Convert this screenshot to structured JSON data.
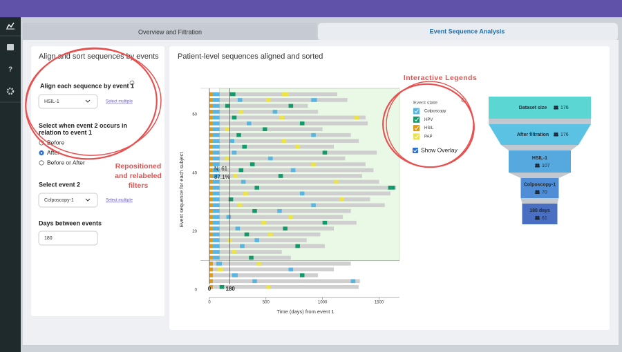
{
  "sidebar": {
    "help": "?"
  },
  "tabs": [
    "Overview and Filtration",
    "Event Sequence Analysis"
  ],
  "filters": {
    "title": "Align and sort sequences by events",
    "align_label": "Align each sequence by event 1",
    "align_value": "HSIL-1",
    "align_link": "Select multiple",
    "relation_label": "Select when event 2 occurs in relation to event 1",
    "relation_options": [
      "Before",
      "After",
      "Before or After"
    ],
    "event2_label": "Select event 2",
    "event2_value": "Colposcopy-1",
    "event2_link": "Select multiple",
    "days_label": "Days between events",
    "days_value": "180"
  },
  "annotations": {
    "filters_note": [
      "Repositioned",
      "and relabeled",
      "filters"
    ],
    "legend_note": "Interactive Legends"
  },
  "chart_data": {
    "type": "sequence",
    "title": "Patient-level sequences aligned and sorted",
    "x_label": "Time (days) from event 1",
    "y_label": "Event sequence for each subject",
    "xlim": [
      0,
      1680
    ],
    "ylim": [
      0,
      69
    ],
    "xticks": [
      0,
      500,
      1000,
      1500
    ],
    "yticks": [
      0,
      20,
      40,
      60
    ],
    "legend_title": "Event state",
    "states": [
      {
        "name": "Colposcopy",
        "color": "#5ab4e0"
      },
      {
        "name": "HPV",
        "color": "#15996b"
      },
      {
        "name": "HSIL",
        "color": "#e39a10"
      },
      {
        "name": "PAP",
        "color": "#ece24a"
      }
    ],
    "overlay_label": "Show Overlay",
    "overlay_x": [
      90,
      1680
    ],
    "overlay_y": [
      10,
      69
    ],
    "n_label": "N: 61",
    "pct_label": "87.1%",
    "markers": [
      0,
      180
    ],
    "rows": [
      {
        "y": 67,
        "span": [
          0,
          1130
        ],
        "events": [
          [
            0,
            30,
            2
          ],
          [
            30,
            90,
            0
          ],
          [
            180,
            230,
            1
          ],
          [
            640,
            700,
            3
          ]
        ]
      },
      {
        "y": 65,
        "span": [
          0,
          1220
        ],
        "events": [
          [
            0,
            30,
            2
          ],
          [
            30,
            90,
            0
          ],
          [
            250,
            290,
            0
          ],
          [
            500,
            540,
            3
          ],
          [
            900,
            950,
            0
          ]
        ]
      },
      {
        "y": 63,
        "span": [
          0,
          870
        ],
        "events": [
          [
            0,
            30,
            2
          ],
          [
            30,
            90,
            0
          ],
          [
            140,
            180,
            1
          ],
          [
            700,
            740,
            1
          ]
        ]
      },
      {
        "y": 61,
        "span": [
          0,
          960
        ],
        "events": [
          [
            0,
            30,
            2
          ],
          [
            30,
            90,
            0
          ],
          [
            260,
            300,
            3
          ],
          [
            560,
            600,
            0
          ]
        ]
      },
      {
        "y": 59,
        "span": [
          0,
          1380
        ],
        "events": [
          [
            0,
            30,
            2
          ],
          [
            30,
            90,
            0
          ],
          [
            200,
            240,
            1
          ],
          [
            620,
            660,
            3
          ],
          [
            1280,
            1320,
            3
          ]
        ]
      },
      {
        "y": 57,
        "span": [
          0,
          1400
        ],
        "events": [
          [
            0,
            30,
            2
          ],
          [
            30,
            90,
            0
          ],
          [
            330,
            370,
            0
          ],
          [
            800,
            840,
            1
          ]
        ]
      },
      {
        "y": 55,
        "span": [
          0,
          1000
        ],
        "events": [
          [
            0,
            30,
            2
          ],
          [
            30,
            90,
            0
          ],
          [
            140,
            180,
            3
          ],
          [
            470,
            510,
            1
          ]
        ]
      },
      {
        "y": 53,
        "span": [
          0,
          1250
        ],
        "events": [
          [
            0,
            30,
            2
          ],
          [
            30,
            90,
            0
          ],
          [
            240,
            280,
            1
          ],
          [
            900,
            940,
            0
          ]
        ]
      },
      {
        "y": 51,
        "span": [
          0,
          1320
        ],
        "events": [
          [
            0,
            30,
            2
          ],
          [
            30,
            90,
            0
          ],
          [
            180,
            220,
            0
          ],
          [
            640,
            680,
            3
          ]
        ]
      },
      {
        "y": 49,
        "span": [
          0,
          1100
        ],
        "events": [
          [
            0,
            30,
            2
          ],
          [
            30,
            90,
            0
          ],
          [
            290,
            330,
            1
          ],
          [
            760,
            800,
            3
          ]
        ]
      },
      {
        "y": 47,
        "span": [
          0,
          1480
        ],
        "events": [
          [
            0,
            30,
            2
          ],
          [
            30,
            90,
            0
          ],
          [
            200,
            240,
            0
          ],
          [
            1000,
            1040,
            1
          ]
        ]
      },
      {
        "y": 45,
        "span": [
          0,
          1200
        ],
        "events": [
          [
            0,
            30,
            2
          ],
          [
            30,
            90,
            0
          ],
          [
            140,
            180,
            3
          ],
          [
            520,
            560,
            0
          ]
        ]
      },
      {
        "y": 43,
        "span": [
          0,
          1380
        ],
        "events": [
          [
            0,
            30,
            2
          ],
          [
            30,
            90,
            0
          ],
          [
            360,
            400,
            1
          ],
          [
            900,
            940,
            3
          ]
        ]
      },
      {
        "y": 41,
        "span": [
          0,
          1450
        ],
        "events": [
          [
            0,
            30,
            2
          ],
          [
            30,
            90,
            0
          ],
          [
            260,
            300,
            1
          ],
          [
            720,
            760,
            0
          ]
        ]
      },
      {
        "y": 39,
        "span": [
          0,
          1350
        ],
        "events": [
          [
            0,
            30,
            2
          ],
          [
            30,
            90,
            0
          ],
          [
            210,
            250,
            3
          ],
          [
            610,
            650,
            1
          ]
        ]
      },
      {
        "y": 37,
        "span": [
          0,
          1500
        ],
        "events": [
          [
            0,
            30,
            2
          ],
          [
            30,
            90,
            0
          ],
          [
            280,
            320,
            0
          ],
          [
            1100,
            1140,
            3
          ]
        ]
      },
      {
        "y": 35,
        "span": [
          0,
          1650
        ],
        "events": [
          [
            0,
            30,
            2
          ],
          [
            30,
            90,
            0
          ],
          [
            400,
            440,
            1
          ],
          [
            1580,
            1640,
            1
          ]
        ]
      },
      {
        "y": 33,
        "span": [
          0,
          1600
        ],
        "events": [
          [
            0,
            30,
            2
          ],
          [
            30,
            90,
            0
          ],
          [
            300,
            340,
            3
          ],
          [
            800,
            840,
            0
          ]
        ]
      },
      {
        "y": 31,
        "span": [
          0,
          1420
        ],
        "events": [
          [
            0,
            30,
            2
          ],
          [
            30,
            90,
            0
          ],
          [
            170,
            210,
            1
          ],
          [
            1150,
            1190,
            3
          ]
        ]
      },
      {
        "y": 29,
        "span": [
          0,
          1550
        ],
        "events": [
          [
            0,
            30,
            2
          ],
          [
            30,
            90,
            0
          ],
          [
            250,
            290,
            3
          ],
          [
            900,
            940,
            0
          ]
        ]
      },
      {
        "y": 27,
        "span": [
          0,
          1250
        ],
        "events": [
          [
            0,
            30,
            2
          ],
          [
            30,
            90,
            0
          ],
          [
            380,
            420,
            1
          ],
          [
            600,
            640,
            0
          ]
        ]
      },
      {
        "y": 25,
        "span": [
          0,
          1180
        ],
        "events": [
          [
            0,
            30,
            2
          ],
          [
            30,
            90,
            0
          ],
          [
            150,
            190,
            0
          ],
          [
            700,
            740,
            3
          ]
        ]
      },
      {
        "y": 23,
        "span": [
          0,
          1300
        ],
        "events": [
          [
            0,
            30,
            2
          ],
          [
            30,
            90,
            0
          ],
          [
            460,
            500,
            3
          ],
          [
            1000,
            1040,
            1
          ]
        ]
      },
      {
        "y": 21,
        "span": [
          0,
          1100
        ],
        "events": [
          [
            0,
            30,
            2
          ],
          [
            30,
            90,
            0
          ],
          [
            230,
            270,
            0
          ],
          [
            650,
            690,
            1
          ]
        ]
      },
      {
        "y": 19,
        "span": [
          0,
          980
        ],
        "events": [
          [
            0,
            30,
            2
          ],
          [
            30,
            90,
            0
          ],
          [
            310,
            350,
            1
          ],
          [
            520,
            560,
            3
          ]
        ]
      },
      {
        "y": 17,
        "span": [
          0,
          860
        ],
        "events": [
          [
            0,
            30,
            2
          ],
          [
            30,
            90,
            0
          ],
          [
            160,
            200,
            3
          ],
          [
            400,
            440,
            0
          ]
        ]
      },
      {
        "y": 15,
        "span": [
          0,
          1020
        ],
        "events": [
          [
            0,
            30,
            2
          ],
          [
            30,
            90,
            0
          ],
          [
            270,
            310,
            0
          ],
          [
            760,
            800,
            1
          ]
        ]
      },
      {
        "y": 13,
        "span": [
          0,
          640
        ],
        "events": [
          [
            0,
            30,
            2
          ],
          [
            30,
            90,
            0
          ],
          [
            200,
            240,
            3
          ]
        ]
      },
      {
        "y": 11,
        "span": [
          0,
          720
        ],
        "events": [
          [
            0,
            30,
            2
          ],
          [
            30,
            90,
            0
          ],
          [
            350,
            390,
            1
          ]
        ]
      },
      {
        "y": 9,
        "span": [
          0,
          1250
        ],
        "events": [
          [
            0,
            30,
            2
          ],
          [
            60,
            110,
            0
          ],
          [
            420,
            460,
            3
          ]
        ]
      },
      {
        "y": 7,
        "span": [
          0,
          1100
        ],
        "events": [
          [
            0,
            30,
            2
          ],
          [
            70,
            120,
            3
          ],
          [
            700,
            740,
            0
          ]
        ]
      },
      {
        "y": 5,
        "span": [
          0,
          960
        ],
        "events": [
          [
            0,
            30,
            2
          ],
          [
            200,
            250,
            0
          ],
          [
            800,
            840,
            1
          ]
        ]
      },
      {
        "y": 3,
        "span": [
          0,
          1330
        ],
        "events": [
          [
            0,
            30,
            2
          ],
          [
            380,
            420,
            0
          ],
          [
            1250,
            1290,
            0
          ]
        ]
      },
      {
        "y": 1,
        "span": [
          0,
          1320
        ],
        "events": [
          [
            0,
            30,
            2
          ],
          [
            90,
            130,
            1
          ],
          [
            500,
            540,
            3
          ]
        ]
      }
    ]
  },
  "funnel": [
    {
      "label": "Dataset size",
      "value": 176,
      "color": "#5cd6d2"
    },
    {
      "label": "After filtration",
      "value": 176,
      "color": "#5bc2e4"
    },
    {
      "label": "HSIL-1",
      "value": 107,
      "color": "#56a9df"
    },
    {
      "label": "Colposcopy-1",
      "value": 70,
      "color": "#4f8ed6"
    },
    {
      "label": "180 days",
      "value": 61,
      "color": "#4a6fc2"
    }
  ]
}
